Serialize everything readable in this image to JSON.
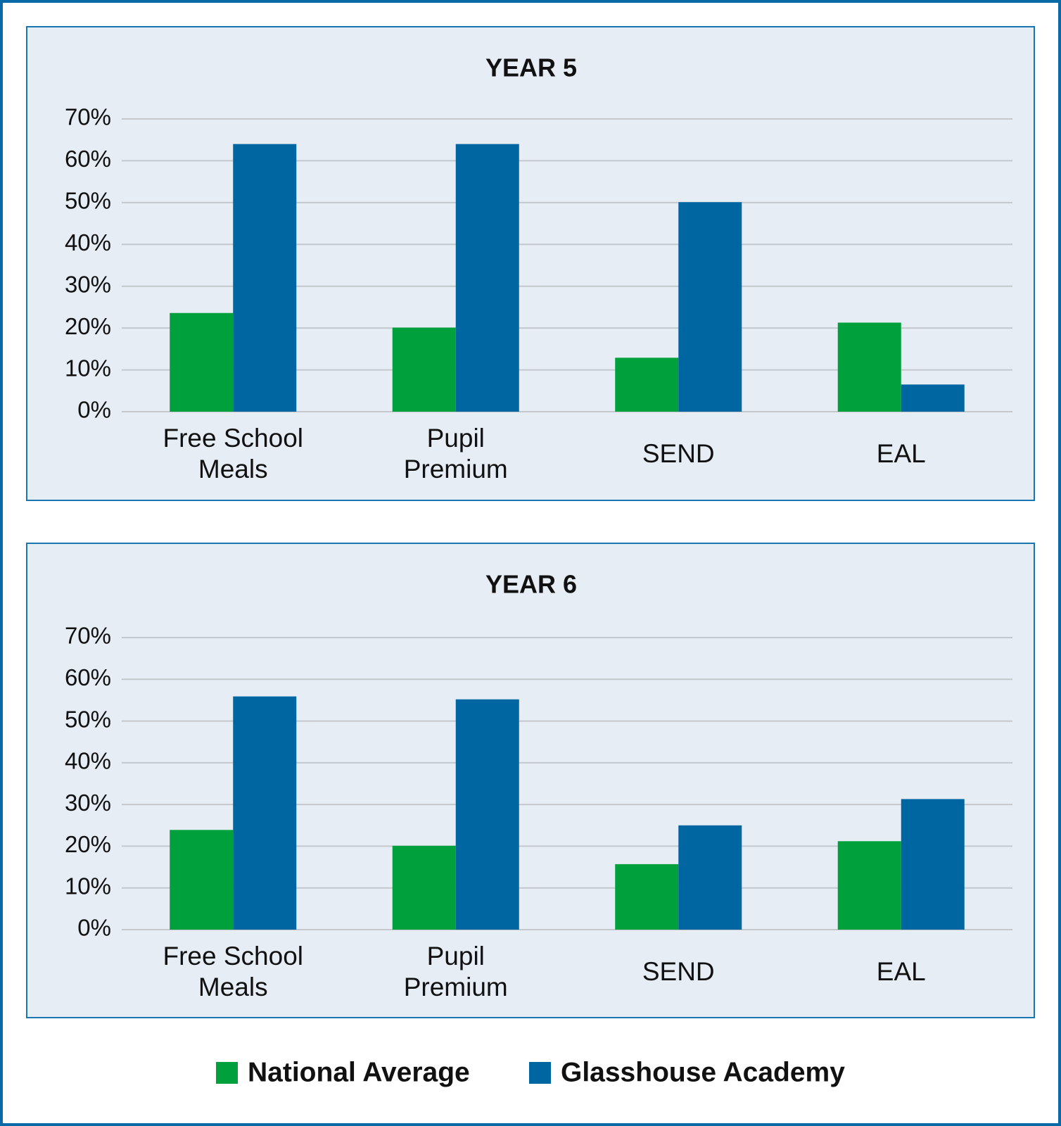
{
  "legend": {
    "position": "bottom",
    "items": [
      {
        "name": "National Average",
        "color": "#00a03c"
      },
      {
        "name": "Glasshouse Academy",
        "color": "#0066a1"
      }
    ]
  },
  "chart_data": [
    {
      "type": "bar",
      "title": "YEAR 5",
      "categories": [
        "Free School Meals",
        "Pupil Premium",
        "SEND",
        "EAL"
      ],
      "series": [
        {
          "values": [
            23.6,
            20.1,
            12.9,
            21.3
          ]
        },
        {
          "values": [
            64,
            64,
            50.1,
            6.5
          ]
        }
      ],
      "ylim": [
        0,
        70
      ],
      "yticks": [
        {
          "value": 0,
          "label": "0%"
        },
        {
          "value": 10,
          "label": "10%"
        },
        {
          "value": 20,
          "label": "20%"
        },
        {
          "value": 30,
          "label": "30%"
        },
        {
          "value": 40,
          "label": "40%"
        },
        {
          "value": 50,
          "label": "50%"
        },
        {
          "value": 60,
          "label": "60%"
        },
        {
          "value": 70,
          "label": "70%"
        }
      ],
      "grid": true
    },
    {
      "type": "bar",
      "title": "YEAR 6",
      "categories": [
        "Free School Meals",
        "Pupil Premium",
        "SEND",
        "EAL"
      ],
      "series": [
        {
          "values": [
            23.9,
            20.1,
            15.7,
            21.2
          ]
        },
        {
          "values": [
            55.9,
            55.2,
            25,
            31.3
          ]
        }
      ],
      "ylim": [
        0,
        70
      ],
      "yticks": [
        {
          "value": 0,
          "label": "0%"
        },
        {
          "value": 10,
          "label": "10%"
        },
        {
          "value": 20,
          "label": "20%"
        },
        {
          "value": 30,
          "label": "30%"
        },
        {
          "value": 40,
          "label": "40%"
        },
        {
          "value": 50,
          "label": "50%"
        },
        {
          "value": 60,
          "label": "60%"
        },
        {
          "value": 70,
          "label": "70%"
        }
      ],
      "grid": true
    }
  ]
}
